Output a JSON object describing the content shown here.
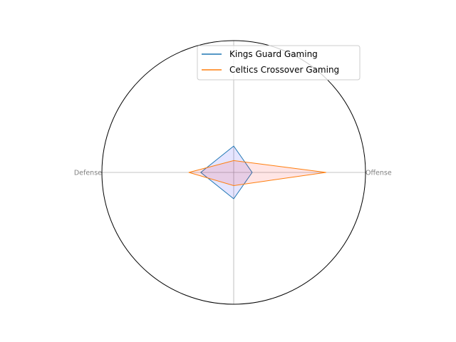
{
  "chart_data": {
    "type": "radar",
    "axes": [
      "Offense",
      "",
      "Defense",
      ""
    ],
    "rmax": 1.0,
    "grid": true,
    "legend_position": "upper-right",
    "series": [
      {
        "name": "Kings Guard Gaming",
        "values": [
          0.14,
          0.2,
          0.25,
          0.2
        ],
        "color": "#1f77b4",
        "fill": "#0000ff"
      },
      {
        "name": "Celtics Crossover Gaming",
        "values": [
          0.7,
          0.09,
          0.34,
          0.1
        ],
        "color": "#ff7f0e",
        "fill": "#ff0000"
      }
    ]
  }
}
